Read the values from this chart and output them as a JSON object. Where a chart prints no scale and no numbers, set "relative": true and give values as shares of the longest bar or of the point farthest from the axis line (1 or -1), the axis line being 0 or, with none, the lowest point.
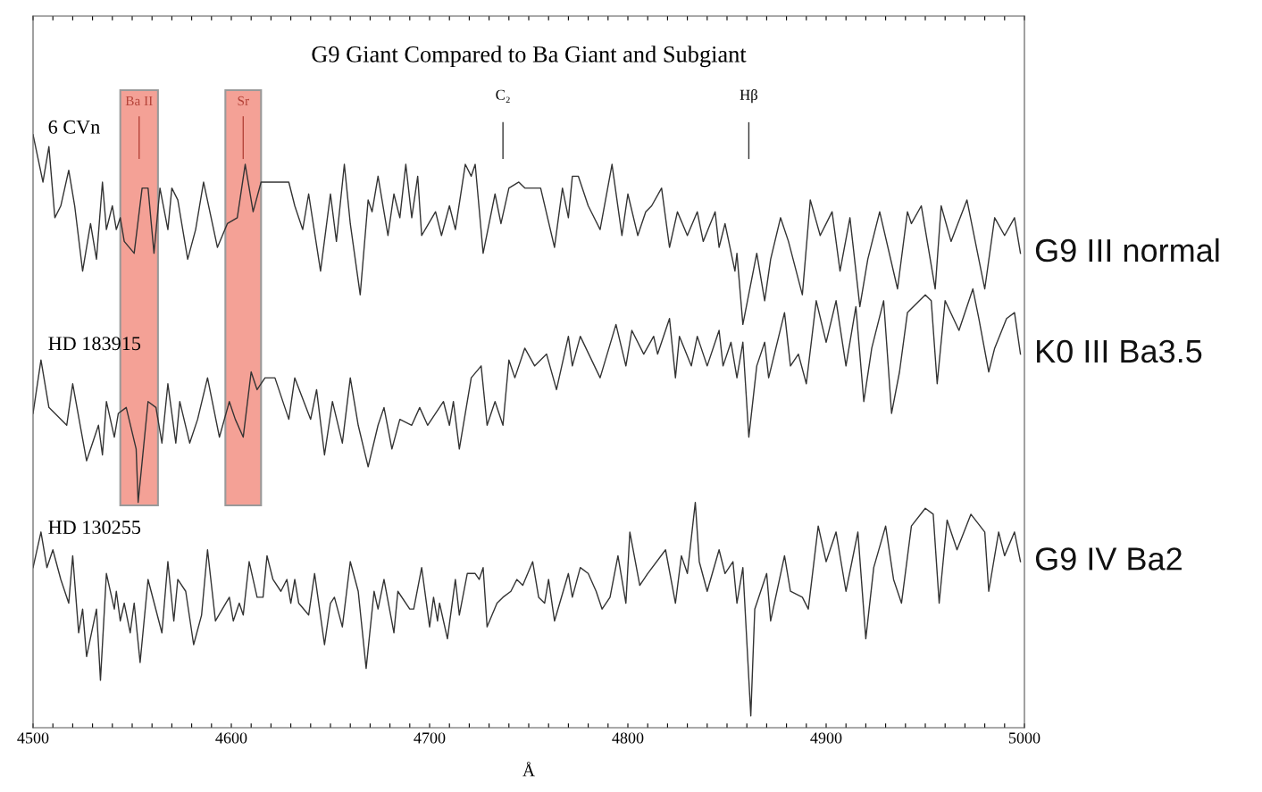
{
  "chart_data": {
    "type": "line",
    "relative": true,
    "title": "G9 Giant Compared to Ba Giant and Subgiant",
    "xlabel": "Å",
    "xlim": [
      4500,
      5000
    ],
    "xticks": [
      4500,
      {
        "value": 4510,
        "label": null
      },
      {
        "value": 4520,
        "label": null
      },
      {
        "value": 4530,
        "label": null
      },
      {
        "value": 4540,
        "label": null
      },
      {
        "value": 4550,
        "label": null
      },
      {
        "value": 4560,
        "label": null
      },
      {
        "value": 4570,
        "label": null
      },
      {
        "value": 4580,
        "label": null
      },
      {
        "value": 4590,
        "label": null
      },
      4600,
      {
        "value": 4610,
        "label": null
      },
      {
        "value": 4620,
        "label": null
      },
      {
        "value": 4630,
        "label": null
      },
      {
        "value": 4640,
        "label": null
      },
      {
        "value": 4650,
        "label": null
      },
      {
        "value": 4660,
        "label": null
      },
      {
        "value": 4670,
        "label": null
      },
      {
        "value": 4680,
        "label": null
      },
      {
        "value": 4690,
        "label": null
      },
      4700,
      {
        "value": 4710,
        "label": null
      },
      {
        "value": 4720,
        "label": null
      },
      {
        "value": 4730,
        "label": null
      },
      {
        "value": 4740,
        "label": null
      },
      {
        "value": 4750,
        "label": null
      },
      {
        "value": 4760,
        "label": null
      },
      {
        "value": 4770,
        "label": null
      },
      {
        "value": 4780,
        "label": null
      },
      {
        "value": 4790,
        "label": null
      },
      4800,
      {
        "value": 4810,
        "label": null
      },
      {
        "value": 4820,
        "label": null
      },
      {
        "value": 4830,
        "label": null
      },
      {
        "value": 4840,
        "label": null
      },
      {
        "value": 4850,
        "label": null
      },
      {
        "value": 4860,
        "label": null
      },
      {
        "value": 4870,
        "label": null
      },
      {
        "value": 4880,
        "label": null
      },
      {
        "value": 4890,
        "label": null
      },
      4900,
      {
        "value": 4910,
        "label": null
      },
      {
        "value": 4920,
        "label": null
      },
      {
        "value": 4930,
        "label": null
      },
      {
        "value": 4940,
        "label": null
      },
      {
        "value": 4950,
        "label": null
      },
      {
        "value": 4960,
        "label": null
      },
      {
        "value": 4970,
        "label": null
      },
      {
        "value": 4980,
        "label": null
      },
      {
        "value": 4990,
        "label": null
      },
      5000
    ],
    "tick_labels": "x",
    "grid": false,
    "legend": false,
    "marker": "none",
    "line_style": "solid",
    "series": [
      {
        "name": "G9 III normal",
        "color": "#333333",
        "x": [
          4500,
          4505,
          4508,
          4511,
          4514,
          4518,
          4521,
          4525,
          4529,
          4532,
          4535,
          4537,
          4540,
          4542,
          4544,
          4546,
          4551,
          4555,
          4558,
          4561,
          4564,
          4568,
          4570,
          4573,
          4578,
          4582,
          4586,
          4593,
          4598,
          4603,
          4607,
          4611,
          4615,
          4620,
          4625,
          4629,
          4632,
          4636,
          4639,
          4645,
          4650,
          4653,
          4657,
          4660,
          4665,
          4669,
          4671,
          4674,
          4679,
          4682,
          4685,
          4688,
          4691,
          4694,
          4696,
          4703,
          4706,
          4710,
          4713,
          4718,
          4721,
          4723,
          4727,
          4733,
          4736,
          4740,
          4745,
          4748,
          4756,
          4763,
          4767,
          4770,
          4772,
          4775,
          4780,
          4786,
          4792,
          4797,
          4800,
          4805,
          4809,
          4812,
          4817,
          4821,
          4825,
          4830,
          4835,
          4838,
          4844,
          4846,
          4849,
          4854,
          4855,
          4858,
          4865,
          4869,
          4872,
          4877,
          4881,
          4888,
          4892,
          4897,
          4903,
          4907,
          4912,
          4917,
          4921,
          4927,
          4936,
          4941,
          4943,
          4948,
          4955,
          4958,
          4963,
          4971,
          4980,
          4985,
          4990,
          4995,
          4998
        ],
        "values": [
          1.0,
          0.92,
          0.98,
          0.86,
          0.88,
          0.94,
          0.88,
          0.77,
          0.85,
          0.79,
          0.92,
          0.84,
          0.88,
          0.84,
          0.86,
          0.82,
          0.8,
          0.91,
          0.91,
          0.8,
          0.91,
          0.84,
          0.91,
          0.89,
          0.79,
          0.84,
          0.92,
          0.81,
          0.85,
          0.86,
          0.95,
          0.87,
          0.92,
          0.92,
          0.92,
          0.92,
          0.88,
          0.84,
          0.9,
          0.77,
          0.9,
          0.82,
          0.95,
          0.85,
          0.73,
          0.89,
          0.87,
          0.93,
          0.83,
          0.9,
          0.86,
          0.95,
          0.86,
          0.93,
          0.83,
          0.87,
          0.83,
          0.88,
          0.84,
          0.95,
          0.93,
          0.95,
          0.8,
          0.9,
          0.85,
          0.91,
          0.92,
          0.91,
          0.91,
          0.81,
          0.91,
          0.86,
          0.93,
          0.93,
          0.88,
          0.84,
          0.95,
          0.83,
          0.9,
          0.83,
          0.87,
          0.88,
          0.91,
          0.81,
          0.87,
          0.83,
          0.87,
          0.82,
          0.87,
          0.81,
          0.85,
          0.77,
          0.8,
          0.68,
          0.8,
          0.72,
          0.79,
          0.86,
          0.82,
          0.73,
          0.89,
          0.83,
          0.87,
          0.77,
          0.86,
          0.71,
          0.79,
          0.87,
          0.74,
          0.87,
          0.85,
          0.88,
          0.74,
          0.88,
          0.82,
          0.89,
          0.74,
          0.86,
          0.83,
          0.86,
          0.8
        ]
      },
      {
        "name": "K0 III Ba3.5",
        "color": "#333333",
        "x": [
          4500,
          4504,
          4508,
          4517,
          4520,
          4527,
          4533,
          4535,
          4537,
          4541,
          4543,
          4547,
          4552,
          4553,
          4558,
          4562,
          4565,
          4568,
          4572,
          4574,
          4579,
          4583,
          4588,
          4594,
          4599,
          4602,
          4606,
          4610,
          4613,
          4617,
          4622,
          4629,
          4632,
          4640,
          4643,
          4647,
          4651,
          4656,
          4660,
          4664,
          4669,
          4674,
          4677,
          4681,
          4685,
          4691,
          4695,
          4699,
          4707,
          4710,
          4712,
          4715,
          4721,
          4726,
          4729,
          4733,
          4737,
          4740,
          4743,
          4748,
          4753,
          4759,
          4764,
          4770,
          4772,
          4776,
          4786,
          4794,
          4799,
          4802,
          4808,
          4813,
          4815,
          4821,
          4824,
          4826,
          4832,
          4835,
          4840,
          4846,
          4848,
          4852,
          4855,
          4858,
          4861,
          4865,
          4869,
          4871,
          4879,
          4882,
          4886,
          4890,
          4895,
          4900,
          4905,
          4910,
          4915,
          4919,
          4923,
          4929,
          4933,
          4937,
          4941,
          4950,
          4953,
          4956,
          4960,
          4967,
          4974,
          4977,
          4982,
          4985,
          4991,
          4995,
          4998
        ],
        "values": [
          0.53,
          0.62,
          0.54,
          0.51,
          0.58,
          0.45,
          0.51,
          0.46,
          0.55,
          0.49,
          0.53,
          0.54,
          0.47,
          0.38,
          0.55,
          0.54,
          0.48,
          0.58,
          0.48,
          0.55,
          0.48,
          0.52,
          0.59,
          0.49,
          0.55,
          0.52,
          0.49,
          0.6,
          0.57,
          0.59,
          0.59,
          0.52,
          0.59,
          0.52,
          0.57,
          0.46,
          0.55,
          0.48,
          0.59,
          0.51,
          0.44,
          0.51,
          0.54,
          0.47,
          0.52,
          0.51,
          0.54,
          0.51,
          0.55,
          0.51,
          0.55,
          0.47,
          0.59,
          0.61,
          0.51,
          0.55,
          0.51,
          0.62,
          0.59,
          0.64,
          0.61,
          0.63,
          0.57,
          0.66,
          0.61,
          0.66,
          0.59,
          0.68,
          0.61,
          0.67,
          0.63,
          0.66,
          0.63,
          0.69,
          0.59,
          0.66,
          0.61,
          0.66,
          0.61,
          0.67,
          0.61,
          0.65,
          0.59,
          0.65,
          0.49,
          0.61,
          0.65,
          0.59,
          0.7,
          0.61,
          0.63,
          0.58,
          0.72,
          0.65,
          0.72,
          0.61,
          0.71,
          0.55,
          0.64,
          0.72,
          0.53,
          0.6,
          0.7,
          0.73,
          0.72,
          0.58,
          0.72,
          0.67,
          0.74,
          0.69,
          0.6,
          0.64,
          0.69,
          0.7,
          0.63
        ]
      },
      {
        "name": "G9 IV Ba2",
        "color": "#333333",
        "x": [
          4500,
          4504,
          4507,
          4510,
          4514,
          4518,
          4520,
          4523,
          4525,
          4527,
          4532,
          4534,
          4537,
          4541,
          4542,
          4544,
          4546,
          4549,
          4551,
          4554,
          4558,
          4565,
          4568,
          4571,
          4573,
          4577,
          4581,
          4585,
          4588,
          4592,
          4599,
          4601,
          4604,
          4606,
          4609,
          4613,
          4616,
          4618,
          4621,
          4625,
          4628,
          4630,
          4632,
          4634,
          4639,
          4642,
          4647,
          4650,
          4652,
          4656,
          4660,
          4664,
          4668,
          4672,
          4674,
          4677,
          4682,
          4684,
          4690,
          4692,
          4696,
          4700,
          4702,
          4704,
          4705,
          4709,
          4713,
          4715,
          4719,
          4723,
          4725,
          4727,
          4729,
          4734,
          4737,
          4741,
          4744,
          4747,
          4752,
          4755,
          4758,
          4760,
          4763,
          4770,
          4772,
          4776,
          4780,
          4784,
          4787,
          4791,
          4795,
          4799,
          4801,
          4806,
          4810,
          4819,
          4824,
          4827,
          4830,
          4834,
          4836,
          4840,
          4846,
          4849,
          4853,
          4855,
          4858,
          4862,
          4864,
          4870,
          4872,
          4879,
          4882,
          4888,
          4891,
          4896,
          4900,
          4905,
          4910,
          4916,
          4920,
          4924,
          4930,
          4934,
          4938,
          4943,
          4950,
          4954,
          4957,
          4961,
          4966,
          4973,
          4980,
          4982,
          4987,
          4990,
          4995,
          4998
        ],
        "values": [
          0.27,
          0.33,
          0.27,
          0.3,
          0.25,
          0.21,
          0.29,
          0.16,
          0.2,
          0.12,
          0.2,
          0.08,
          0.26,
          0.2,
          0.23,
          0.18,
          0.21,
          0.16,
          0.21,
          0.11,
          0.25,
          0.16,
          0.28,
          0.18,
          0.25,
          0.23,
          0.14,
          0.19,
          0.3,
          0.18,
          0.22,
          0.18,
          0.21,
          0.19,
          0.28,
          0.22,
          0.22,
          0.29,
          0.25,
          0.23,
          0.25,
          0.21,
          0.25,
          0.21,
          0.19,
          0.26,
          0.14,
          0.21,
          0.22,
          0.17,
          0.28,
          0.23,
          0.1,
          0.23,
          0.2,
          0.25,
          0.16,
          0.23,
          0.2,
          0.2,
          0.27,
          0.17,
          0.22,
          0.18,
          0.21,
          0.15,
          0.25,
          0.19,
          0.26,
          0.26,
          0.25,
          0.27,
          0.17,
          0.21,
          0.22,
          0.23,
          0.25,
          0.24,
          0.28,
          0.22,
          0.21,
          0.25,
          0.18,
          0.26,
          0.22,
          0.27,
          0.26,
          0.23,
          0.2,
          0.22,
          0.29,
          0.21,
          0.33,
          0.24,
          0.26,
          0.3,
          0.21,
          0.29,
          0.26,
          0.38,
          0.28,
          0.23,
          0.3,
          0.26,
          0.28,
          0.21,
          0.27,
          0.02,
          0.2,
          0.26,
          0.18,
          0.29,
          0.23,
          0.22,
          0.2,
          0.34,
          0.28,
          0.33,
          0.23,
          0.33,
          0.15,
          0.27,
          0.34,
          0.25,
          0.21,
          0.34,
          0.37,
          0.36,
          0.21,
          0.35,
          0.3,
          0.36,
          0.33,
          0.23,
          0.33,
          0.29,
          0.33,
          0.28
        ]
      }
    ],
    "bands": [
      {
        "axis": "x",
        "from": 4544,
        "to": 4563,
        "label": "Ba II",
        "color": "#f4a196"
      },
      {
        "axis": "x",
        "from": 4597,
        "to": 4615,
        "label": "Sr",
        "color": "#f4a196"
      }
    ],
    "ref_lines": [
      {
        "axis": "x",
        "value": 4737,
        "label": "C₂",
        "color": "#333333"
      },
      {
        "axis": "x",
        "value": 4861,
        "label": "Hβ",
        "color": "#333333"
      }
    ],
    "annotations": [
      "6 CVn",
      "HD 183915",
      "HD 130255"
    ]
  }
}
